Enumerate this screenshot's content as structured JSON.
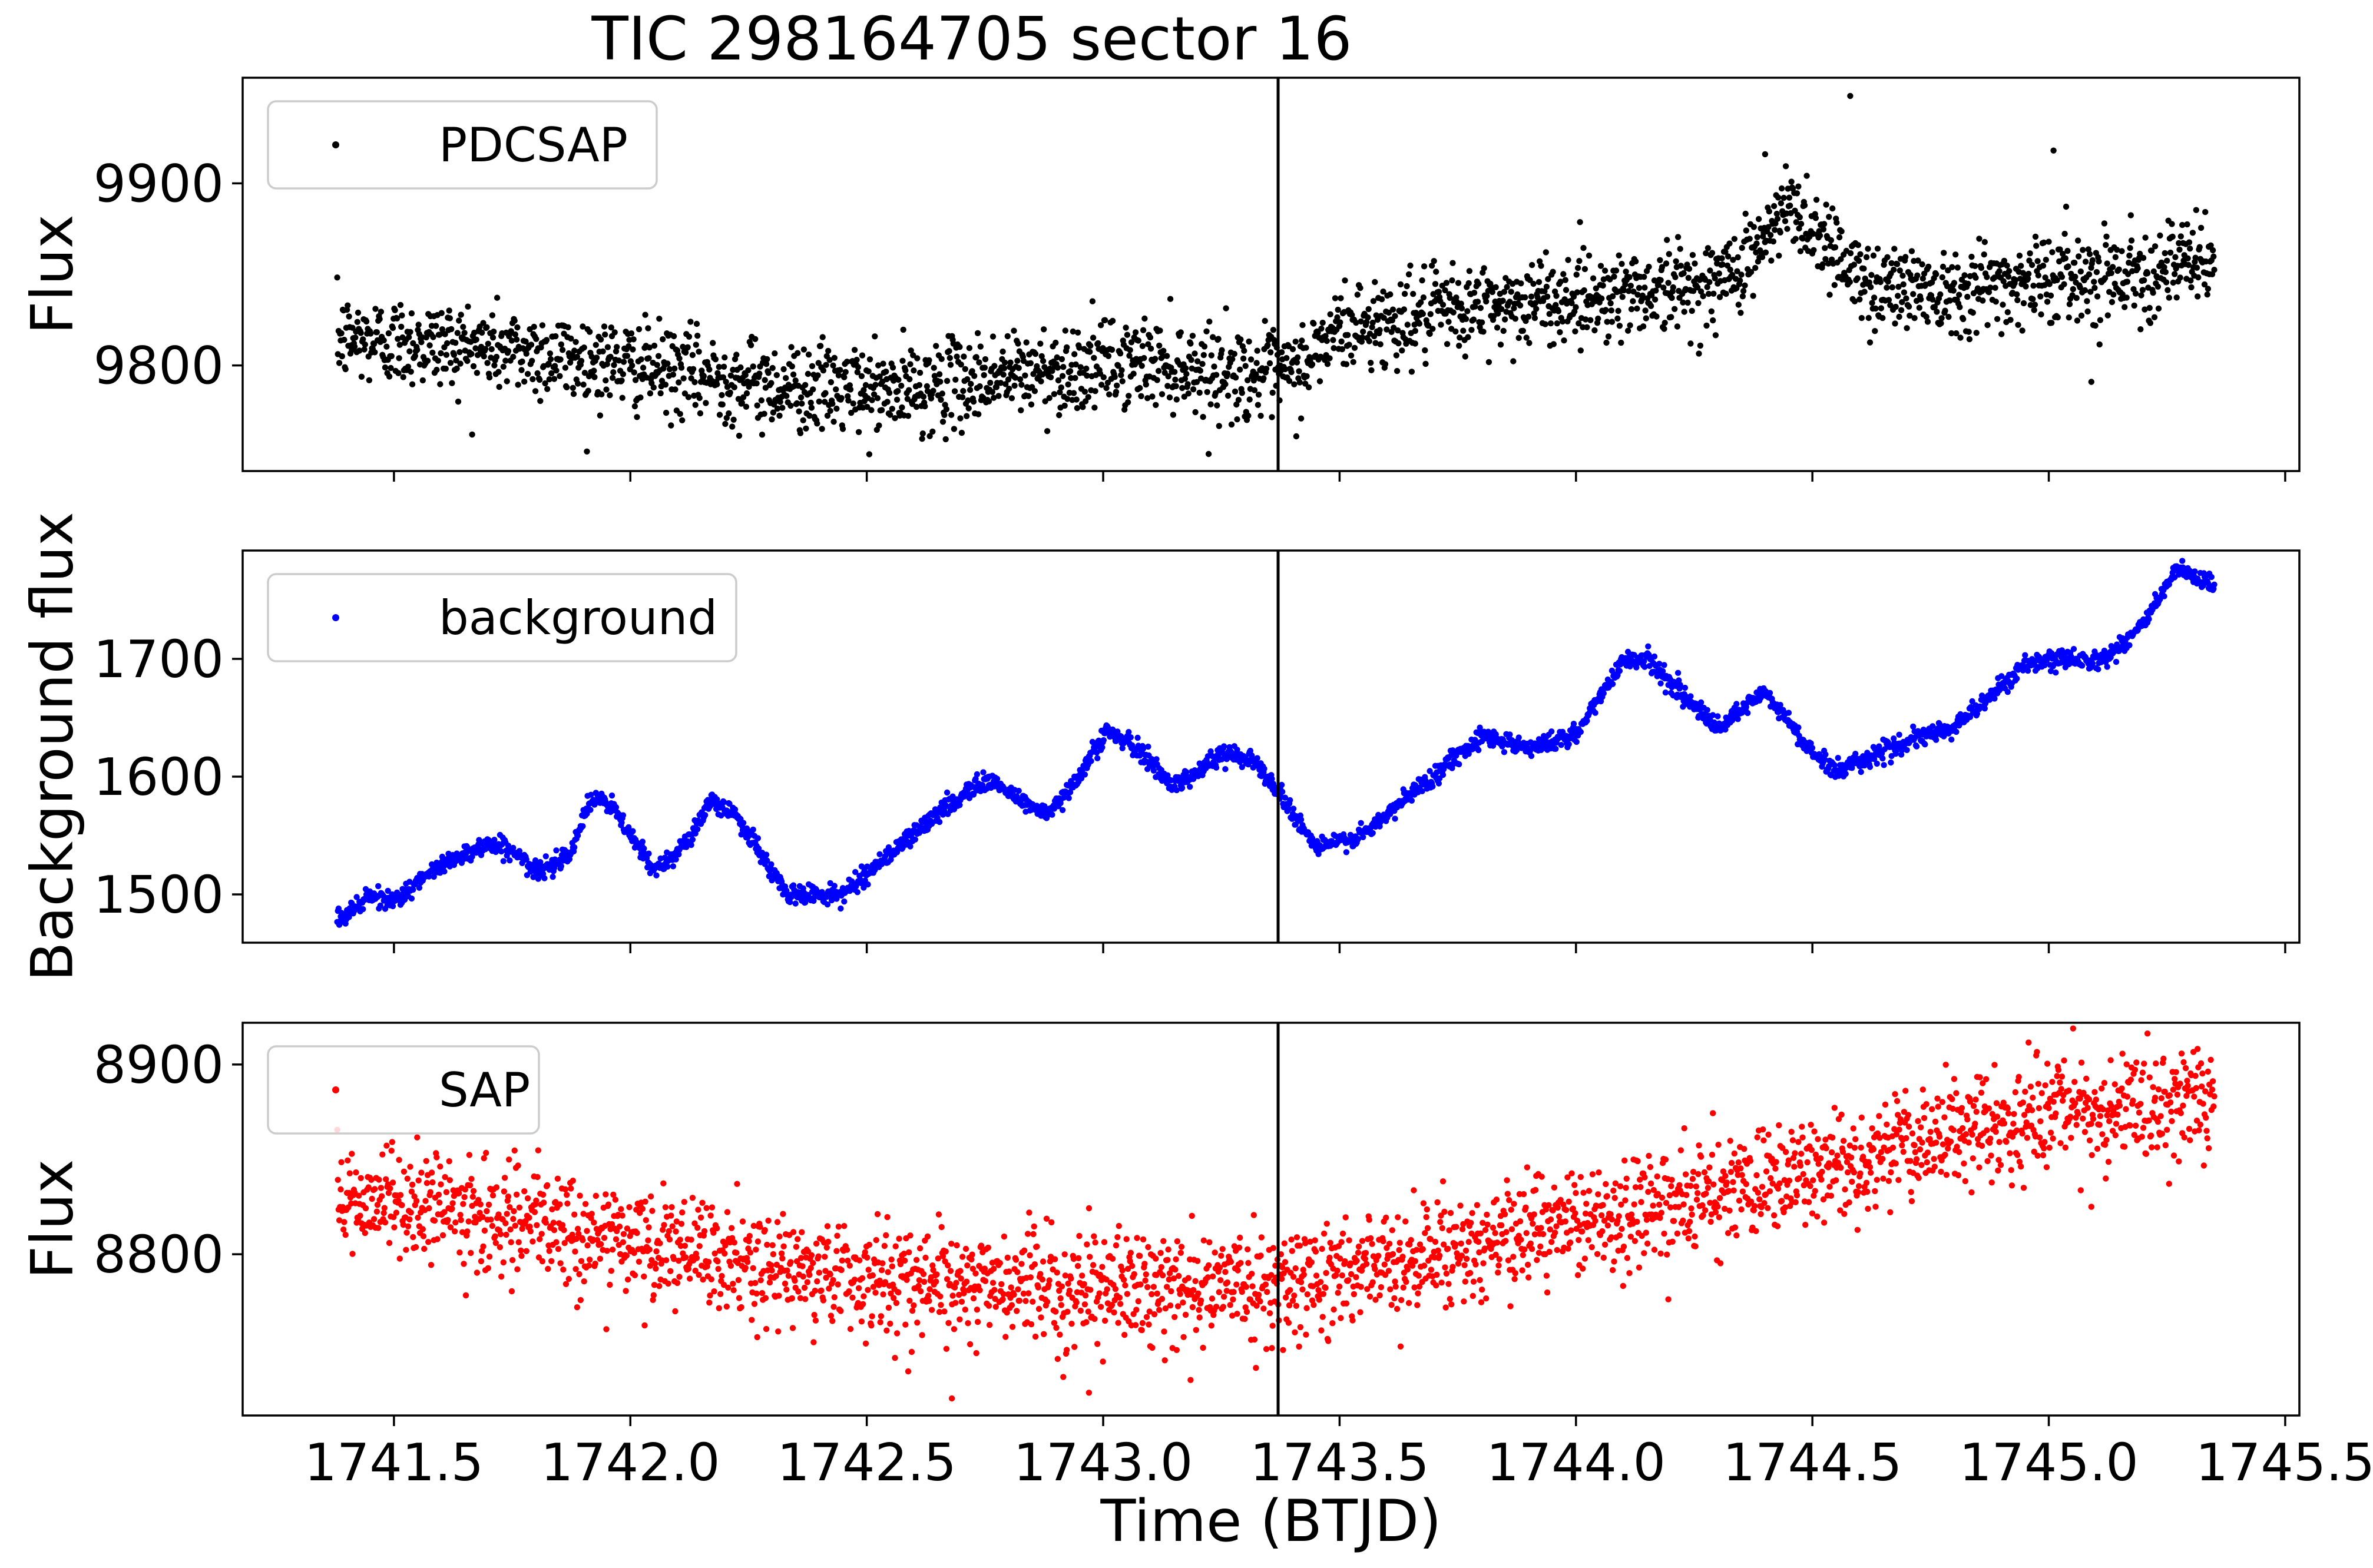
{
  "title": "TIC 298164705 sector 16",
  "xlabel": "Time (BTJD)",
  "marker_time": 1743.37,
  "x_ticks": [
    "1741.5",
    "1742.0",
    "1742.5",
    "1743.0",
    "1743.5",
    "1744.0",
    "1744.5",
    "1745.0",
    "1745.5"
  ],
  "chart_data": [
    {
      "type": "scatter",
      "name": "PDCSAP",
      "legend": "PDCSAP",
      "legend_loc": "upper left",
      "color": "#000000",
      "ylabel": "Flux",
      "xlim": [
        1741.18,
        1745.53
      ],
      "ylim": [
        9742,
        9958
      ],
      "y_ticks": [
        9800,
        9900
      ],
      "t_range": [
        1741.38,
        1745.35
      ],
      "n_points": 2700,
      "trend": [
        [
          1741.38,
          9815
        ],
        [
          1741.7,
          9810
        ],
        [
          1742.0,
          9800
        ],
        [
          1742.3,
          9789
        ],
        [
          1742.55,
          9785
        ],
        [
          1742.8,
          9795
        ],
        [
          1743.1,
          9802
        ],
        [
          1743.3,
          9795
        ],
        [
          1743.4,
          9795
        ],
        [
          1743.5,
          9820
        ],
        [
          1743.8,
          9832
        ],
        [
          1744.1,
          9840
        ],
        [
          1744.3,
          9845
        ],
        [
          1744.4,
          9868
        ],
        [
          1744.45,
          9888
        ],
        [
          1744.55,
          9865
        ],
        [
          1744.6,
          9845
        ],
        [
          1744.8,
          9842
        ],
        [
          1745.0,
          9848
        ],
        [
          1745.2,
          9852
        ],
        [
          1745.35,
          9858
        ]
      ],
      "noise_sigma": 12,
      "outliers": [
        [
          1744.58,
          9948
        ],
        [
          1745.01,
          9918
        ],
        [
          1745.09,
          9791
        ],
        [
          1743.66,
          9819
        ],
        [
          1744.4,
          9916
        ]
      ]
    },
    {
      "type": "scatter",
      "name": "background",
      "legend": "background",
      "legend_loc": "upper left",
      "color": "#0000ff",
      "ylabel": "Background flux",
      "xlim": [
        1741.18,
        1745.53
      ],
      "ylim": [
        1459,
        1792
      ],
      "y_ticks": [
        1500,
        1600,
        1700
      ],
      "t_range": [
        1741.38,
        1745.35
      ],
      "n_points": 2700,
      "trend": [
        [
          1741.38,
          1478
        ],
        [
          1741.45,
          1498
        ],
        [
          1741.5,
          1495
        ],
        [
          1741.62,
          1530
        ],
        [
          1741.7,
          1543
        ],
        [
          1741.75,
          1538
        ],
        [
          1741.8,
          1518
        ],
        [
          1741.87,
          1535
        ],
        [
          1741.92,
          1582
        ],
        [
          1741.96,
          1575
        ],
        [
          1742.05,
          1520
        ],
        [
          1742.12,
          1545
        ],
        [
          1742.17,
          1578
        ],
        [
          1742.22,
          1570
        ],
        [
          1742.33,
          1500
        ],
        [
          1742.45,
          1500
        ],
        [
          1742.55,
          1535
        ],
        [
          1742.67,
          1575
        ],
        [
          1742.75,
          1598
        ],
        [
          1742.85,
          1575
        ],
        [
          1742.89,
          1568
        ],
        [
          1742.97,
          1615
        ],
        [
          1743.01,
          1640
        ],
        [
          1743.08,
          1620
        ],
        [
          1743.15,
          1592
        ],
        [
          1743.25,
          1618
        ],
        [
          1743.31,
          1618
        ],
        [
          1743.38,
          1582
        ],
        [
          1743.45,
          1540
        ],
        [
          1743.55,
          1550
        ],
        [
          1743.65,
          1585
        ],
        [
          1743.8,
          1635
        ],
        [
          1743.9,
          1625
        ],
        [
          1744.0,
          1635
        ],
        [
          1744.1,
          1700
        ],
        [
          1744.15,
          1700
        ],
        [
          1744.3,
          1640
        ],
        [
          1744.4,
          1672
        ],
        [
          1744.5,
          1620
        ],
        [
          1744.55,
          1605
        ],
        [
          1744.65,
          1622
        ],
        [
          1744.8,
          1642
        ],
        [
          1744.95,
          1695
        ],
        [
          1745.05,
          1700
        ],
        [
          1745.12,
          1700
        ],
        [
          1745.2,
          1730
        ],
        [
          1745.27,
          1775
        ],
        [
          1745.33,
          1765
        ],
        [
          1745.35,
          1760
        ]
      ],
      "noise_sigma": 4,
      "outliers": []
    },
    {
      "type": "scatter",
      "name": "SAP",
      "legend": "SAP",
      "legend_loc": "upper left",
      "color": "#ff0000",
      "ylabel": "Flux",
      "xlim": [
        1741.18,
        1745.53
      ],
      "ylim": [
        8715,
        8922
      ],
      "y_ticks": [
        8800,
        8900
      ],
      "t_range": [
        1741.38,
        1745.35
      ],
      "n_points": 2700,
      "trend": [
        [
          1741.38,
          8832
        ],
        [
          1741.7,
          8820
        ],
        [
          1742.0,
          8806
        ],
        [
          1742.3,
          8792
        ],
        [
          1742.6,
          8786
        ],
        [
          1742.9,
          8782
        ],
        [
          1743.2,
          8783
        ],
        [
          1743.4,
          8785
        ],
        [
          1743.6,
          8795
        ],
        [
          1743.9,
          8812
        ],
        [
          1744.2,
          8827
        ],
        [
          1744.45,
          8840
        ],
        [
          1744.7,
          8857
        ],
        [
          1744.95,
          8870
        ],
        [
          1745.2,
          8878
        ],
        [
          1745.35,
          8884
        ]
      ],
      "noise_sigma": 14,
      "outliers": [
        [
          1742.68,
          8724
        ],
        [
          1742.97,
          8727
        ],
        [
          1745.09,
          8825
        ]
      ]
    }
  ]
}
